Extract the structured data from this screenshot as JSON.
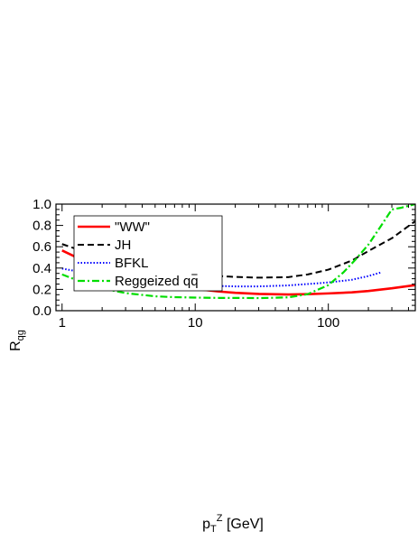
{
  "chart_data": {
    "type": "line",
    "xlabel": {
      "base": "p",
      "sub": "T",
      "sup": "Z",
      "unit": " [GeV]"
    },
    "ylabel": {
      "base": "R",
      "sub": "qg"
    },
    "x_scale": "log",
    "xlim": [
      0.9,
      450
    ],
    "ylim": [
      0.0,
      1.0
    ],
    "xticks": [
      {
        "value": 1,
        "label": "1"
      },
      {
        "value": 10,
        "label": "10"
      },
      {
        "value": 100,
        "label": "100"
      }
    ],
    "yticks": [
      {
        "value": 0.0,
        "label": "0.0"
      },
      {
        "value": 0.2,
        "label": "0.2"
      },
      {
        "value": 0.4,
        "label": "0.4"
      },
      {
        "value": 0.6,
        "label": "0.6"
      },
      {
        "value": 0.8,
        "label": "0.8"
      },
      {
        "value": 1.0,
        "label": "1.0"
      }
    ],
    "grid": false,
    "legend_position": "top-left",
    "series": [
      {
        "name": "\"WW\"",
        "color": "#ff0000",
        "dash": "solid",
        "x": [
          1,
          1.5,
          2,
          3,
          5,
          7,
          10,
          15,
          20,
          30,
          50,
          70,
          100,
          150,
          200,
          300,
          450
        ],
        "y": [
          0.565,
          0.46,
          0.405,
          0.335,
          0.265,
          0.235,
          0.205,
          0.18,
          0.168,
          0.157,
          0.152,
          0.155,
          0.162,
          0.172,
          0.185,
          0.21,
          0.24
        ]
      },
      {
        "name": "JH",
        "color": "#000000",
        "dash": "dashed",
        "x": [
          1,
          1.5,
          2,
          3,
          5,
          7,
          10,
          15,
          20,
          30,
          50,
          70,
          100,
          150,
          200,
          300,
          450
        ],
        "y": [
          0.625,
          0.55,
          0.49,
          0.425,
          0.375,
          0.355,
          0.34,
          0.325,
          0.317,
          0.31,
          0.315,
          0.34,
          0.385,
          0.47,
          0.56,
          0.68,
          0.84
        ]
      },
      {
        "name": "BFKL",
        "color": "#0000ff",
        "dash": "dotted",
        "x": [
          1,
          1.5,
          2,
          3,
          5,
          7,
          10,
          15,
          20,
          30,
          50,
          70,
          100,
          150,
          200,
          250
        ],
        "y": [
          0.395,
          0.355,
          0.33,
          0.3,
          0.27,
          0.255,
          0.24,
          0.232,
          0.228,
          0.228,
          0.237,
          0.25,
          0.265,
          0.29,
          0.325,
          0.36
        ]
      },
      {
        "name": "Reggeized q",
        "name_suffix": "q",
        "color": "#00dd00",
        "dash": "dashdot",
        "x": [
          1,
          1.5,
          2,
          3,
          5,
          7,
          10,
          15,
          20,
          30,
          50,
          70,
          100,
          130,
          160,
          200,
          250,
          300,
          350,
          450
        ],
        "y": [
          0.34,
          0.255,
          0.21,
          0.165,
          0.135,
          0.127,
          0.123,
          0.12,
          0.12,
          0.118,
          0.125,
          0.155,
          0.24,
          0.36,
          0.48,
          0.62,
          0.8,
          0.95,
          0.965,
          1.0
        ]
      }
    ]
  }
}
